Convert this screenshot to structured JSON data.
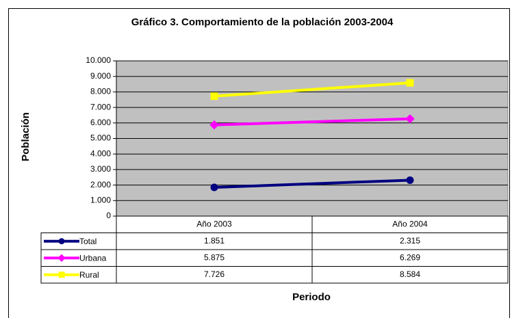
{
  "chart_data": {
    "type": "line",
    "title": "Gráfico 3. Comportamiento de la población 2003-2004",
    "y_label": "Población",
    "x_label": "Periodo",
    "categories": [
      "Año 2003",
      "Año 2004"
    ],
    "series": [
      {
        "name": "Total",
        "color": "#000080",
        "marker": "circle",
        "values": [
          1851,
          2315
        ],
        "value_labels": [
          "1.851",
          "2.315"
        ]
      },
      {
        "name": "Urbana",
        "color": "#ff00ff",
        "marker": "diamond",
        "values": [
          5875,
          6269
        ],
        "value_labels": [
          "5.875",
          "6.269"
        ]
      },
      {
        "name": "Rural",
        "color": "#ffff00",
        "marker": "square",
        "values": [
          7726,
          8584
        ],
        "value_labels": [
          "7.726",
          "8.584"
        ]
      }
    ],
    "ylim": [
      0,
      10000
    ],
    "yticks": [
      0,
      {
        "value": 1000,
        "label": "1.000"
      },
      {
        "value": 2000,
        "label": "2.000"
      },
      {
        "value": 3000,
        "label": "3.000"
      },
      {
        "value": 4000,
        "label": "4.000"
      },
      {
        "value": 5000,
        "label": "5.000"
      },
      {
        "value": 6000,
        "label": "6.000"
      },
      {
        "value": 7000,
        "label": "7.000"
      },
      {
        "value": 8000,
        "label": "8.000"
      },
      {
        "value": 9000,
        "label": "9.000"
      },
      {
        "value": 10000,
        "label": "10.000"
      }
    ],
    "grid": true,
    "plot_background": "#c0c0c0"
  }
}
